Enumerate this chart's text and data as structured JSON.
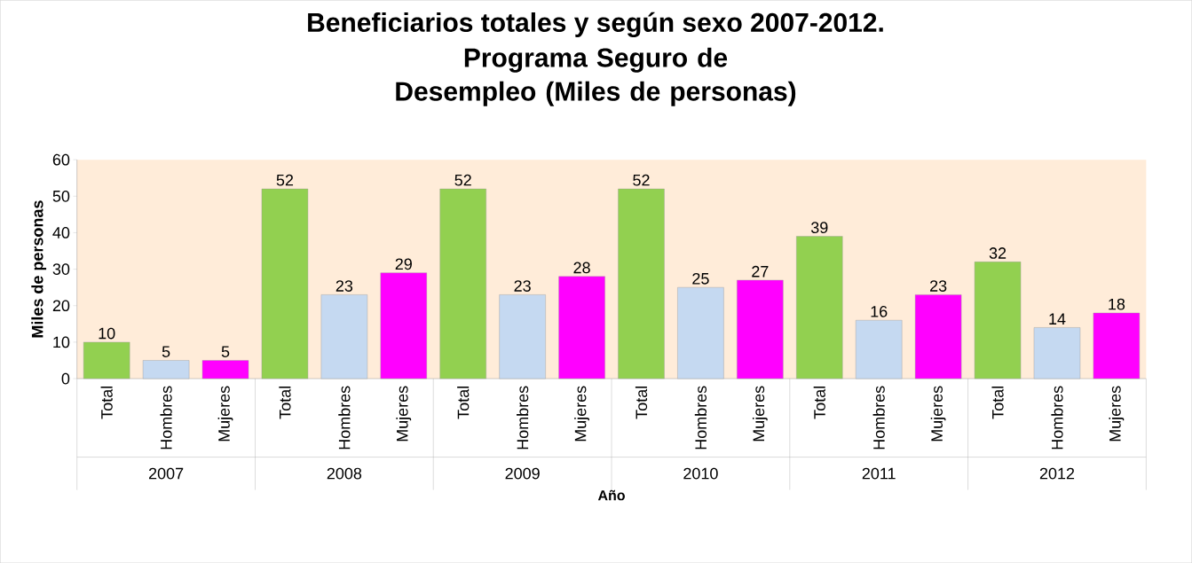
{
  "chart_data": {
    "type": "bar",
    "title": "Beneficiarios totales y según sexo 2007-2012.",
    "subtitle": "Programa Seguro de Desempleo (Miles de personas)",
    "xlabel": "Año",
    "ylabel": "Miles de personas",
    "categories": [
      "Total",
      "Hombres",
      "Mujeres",
      "Total",
      "Hombres",
      "Mujeres",
      "Total",
      "Hombres",
      "Mujeres",
      "Total",
      "Hombres",
      "Mujeres",
      "Total",
      "Hombres",
      "Mujeres",
      "Total",
      "Hombres",
      "Mujeres"
    ],
    "values": [
      10,
      5,
      5,
      52,
      23,
      29,
      52,
      23,
      28,
      52,
      25,
      27,
      39,
      16,
      23,
      32,
      14,
      18
    ],
    "colors": [
      "#92d050",
      "#c5d9f1",
      "#ff00ff",
      "#92d050",
      "#c5d9f1",
      "#ff00ff",
      "#92d050",
      "#c5d9f1",
      "#ff00ff",
      "#92d050",
      "#c5d9f1",
      "#ff00ff",
      "#92d050",
      "#c5d9f1",
      "#ff00ff",
      "#92d050",
      "#c5d9f1",
      "#ff00ff"
    ],
    "ylim": [
      0,
      60
    ],
    "yticks": [
      0,
      10,
      20,
      30,
      40,
      50,
      60
    ],
    "data_labels": true,
    "annotations": [
      "2007",
      "2008",
      "2009",
      "2010",
      "2011",
      "2012"
    ]
  }
}
